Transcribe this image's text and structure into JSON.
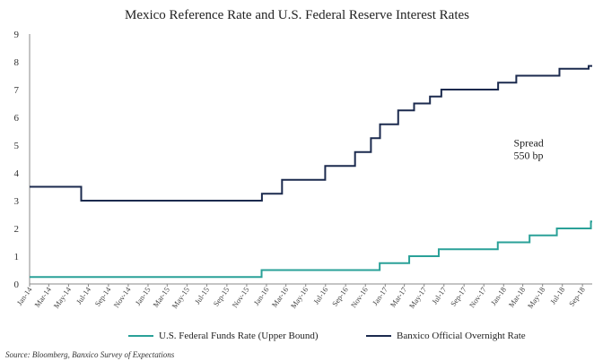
{
  "chart_data": {
    "type": "line",
    "title": "Mexico Reference Rate and U.S. Federal Reserve Interest Rates",
    "xlabel": "",
    "ylabel": "",
    "ylim": [
      0,
      9
    ],
    "y_ticks": [
      "0",
      "1",
      "2",
      "3",
      "4",
      "5",
      "6",
      "7",
      "8",
      "9"
    ],
    "x_ticks": [
      "Jan-14",
      "Mar-14",
      "May-14",
      "Jul-14",
      "Sep-14",
      "Nov-14",
      "Jan-15",
      "Mar-15",
      "May-15",
      "Jul-15",
      "Sep-15",
      "Nov-15",
      "Jan-16",
      "Mar-16",
      "May-16",
      "Jul-16",
      "Sep-16",
      "Nov-16",
      "Jan-17",
      "Mar-17",
      "May-17",
      "Jul-17",
      "Sep-17",
      "Nov-17",
      "Jan-18",
      "Mar-18",
      "May-18",
      "Jul-18",
      "Sep-18"
    ],
    "grid": false,
    "legend_position": "bottom",
    "series": [
      {
        "name": "U.S. Federal Funds Rate (Upper Bound)",
        "color": "#2aa198",
        "step": true,
        "points": [
          [
            "2014-01-01",
            0.25
          ],
          [
            "2015-12-17",
            0.5
          ],
          [
            "2016-12-15",
            0.75
          ],
          [
            "2017-03-16",
            1.0
          ],
          [
            "2017-06-15",
            1.25
          ],
          [
            "2017-12-14",
            1.5
          ],
          [
            "2018-03-22",
            1.75
          ],
          [
            "2018-06-14",
            2.0
          ],
          [
            "2018-09-27",
            2.25
          ],
          [
            "2018-10-01",
            2.25
          ]
        ]
      },
      {
        "name": "Banxico Official Overnight Rate",
        "color": "#1b2a4e",
        "step": true,
        "points": [
          [
            "2014-01-01",
            3.5
          ],
          [
            "2014-06-09",
            3.0
          ],
          [
            "2015-12-18",
            3.25
          ],
          [
            "2016-02-18",
            3.75
          ],
          [
            "2016-06-30",
            4.25
          ],
          [
            "2016-09-30",
            4.75
          ],
          [
            "2016-11-18",
            5.25
          ],
          [
            "2016-12-16",
            5.75
          ],
          [
            "2017-02-10",
            6.25
          ],
          [
            "2017-03-31",
            6.5
          ],
          [
            "2017-05-19",
            6.75
          ],
          [
            "2017-06-23",
            7.0
          ],
          [
            "2017-12-15",
            7.25
          ],
          [
            "2018-02-09",
            7.5
          ],
          [
            "2018-06-22",
            7.75
          ],
          [
            "2018-09-20",
            7.85
          ]
        ]
      }
    ],
    "annotations": [
      {
        "text": "Spread",
        "x": "2018-02-01",
        "y": 4.95
      },
      {
        "text": "550 bp",
        "x": "2018-02-01",
        "y": 4.5
      }
    ]
  },
  "source": "Source: Bloomberg, Banxico Survey of Expectations"
}
